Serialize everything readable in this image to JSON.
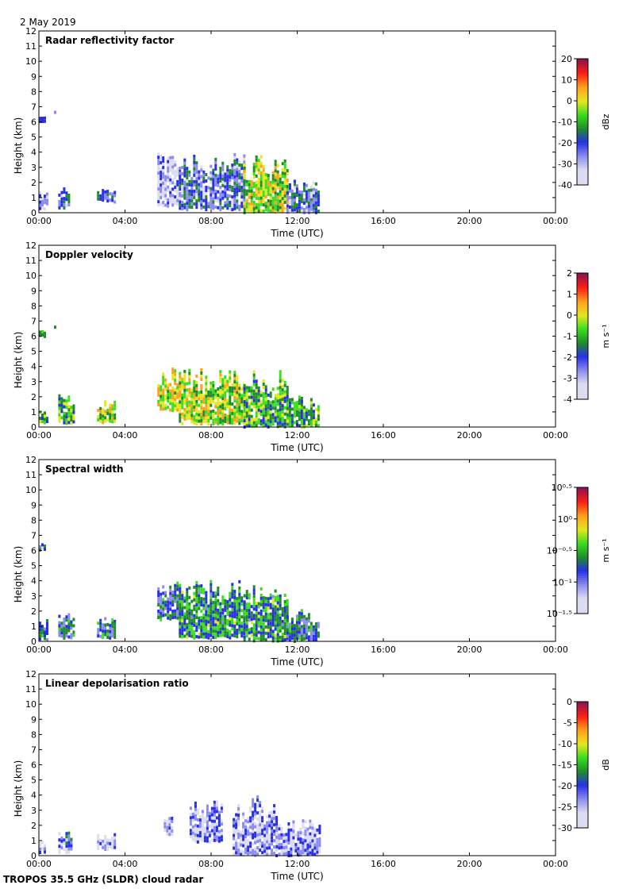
{
  "header": {
    "date": "2 May 2019"
  },
  "footer": {
    "instrument": "TROPOS 35.5 GHz (SLDR) cloud radar"
  },
  "colors": {
    "colormap": [
      "#ffffff",
      "#dcdcf0",
      "#8c8cf0",
      "#2830e6",
      "#1e8c28",
      "#3cdc1e",
      "#e6e61e",
      "#ffa01e",
      "#ff1e14",
      "#8c1450"
    ]
  },
  "chart_data": [
    {
      "type": "heatmap",
      "title": "Radar reflectivity factor",
      "xlabel": "Time (UTC)",
      "ylabel": "Height (km)",
      "xticks": [
        "00:00",
        "04:00",
        "08:00",
        "12:00",
        "16:00",
        "20:00",
        "00:00"
      ],
      "xlim": [
        0,
        24
      ],
      "ylim": [
        0,
        12
      ],
      "yticks": [
        0,
        1,
        2,
        3,
        4,
        5,
        6,
        7,
        8,
        9,
        10,
        11,
        12
      ],
      "colorbar": {
        "label": "dBz",
        "ticks": [
          "20",
          "10",
          "0",
          "-10",
          "-20",
          "-30",
          "-40"
        ],
        "range": [
          -40,
          20
        ]
      },
      "regions": [
        {
          "t0": 0.0,
          "t1": 0.3,
          "h0": 6.0,
          "h1": 6.4,
          "level": 0.25
        },
        {
          "t0": 0.7,
          "t1": 0.8,
          "h0": 6.6,
          "h1": 6.8,
          "level": 0.1
        },
        {
          "t0": 0.0,
          "t1": 0.4,
          "h0": 0.3,
          "h1": 1.5,
          "level": 0.2
        },
        {
          "t0": 0.9,
          "t1": 1.4,
          "h0": 0.4,
          "h1": 1.7,
          "level": 0.3
        },
        {
          "t0": 2.7,
          "t1": 3.5,
          "h0": 0.8,
          "h1": 1.7,
          "level": 0.3
        },
        {
          "t0": 5.5,
          "t1": 6.5,
          "h0": 0.5,
          "h1": 4.0,
          "level": 0.15
        },
        {
          "t0": 6.5,
          "t1": 9.5,
          "h0": 0.3,
          "h1": 4.0,
          "level": 0.3
        },
        {
          "t0": 9.5,
          "t1": 11.5,
          "h0": 0.1,
          "h1": 3.8,
          "level": 0.6
        },
        {
          "t0": 11.5,
          "t1": 13.0,
          "h0": 0.1,
          "h1": 2.2,
          "level": 0.3
        }
      ]
    },
    {
      "type": "heatmap",
      "title": "Doppler velocity",
      "xlabel": "Time (UTC)",
      "ylabel": "Height (km)",
      "xticks": [
        "00:00",
        "04:00",
        "08:00",
        "12:00",
        "16:00",
        "20:00",
        "00:00"
      ],
      "xlim": [
        0,
        24
      ],
      "ylim": [
        0,
        12
      ],
      "yticks": [
        0,
        1,
        2,
        3,
        4,
        5,
        6,
        7,
        8,
        9,
        10,
        11,
        12
      ],
      "colorbar": {
        "label": "m s⁻¹",
        "ticks": [
          "2",
          "1",
          "0",
          "-1",
          "-2",
          "-3",
          "-4"
        ],
        "range": [
          -4,
          2
        ]
      },
      "regions": [
        {
          "t0": 0.0,
          "t1": 0.3,
          "h0": 6.0,
          "h1": 6.5,
          "level": 0.55
        },
        {
          "t0": 0.7,
          "t1": 0.8,
          "h0": 6.5,
          "h1": 6.8,
          "level": 0.6
        },
        {
          "t0": 0.0,
          "t1": 0.4,
          "h0": 0.3,
          "h1": 1.3,
          "level": 0.5
        },
        {
          "t0": 0.9,
          "t1": 1.6,
          "h0": 0.3,
          "h1": 2.3,
          "level": 0.5
        },
        {
          "t0": 2.7,
          "t1": 3.5,
          "h0": 0.4,
          "h1": 1.8,
          "level": 0.6
        },
        {
          "t0": 5.5,
          "t1": 6.5,
          "h0": 1.2,
          "h1": 4.0,
          "level": 0.65
        },
        {
          "t0": 6.5,
          "t1": 9.5,
          "h0": 0.3,
          "h1": 4.0,
          "level": 0.6
        },
        {
          "t0": 9.5,
          "t1": 11.5,
          "h0": 0.1,
          "h1": 3.8,
          "level": 0.5
        },
        {
          "t0": 11.5,
          "t1": 13.0,
          "h0": 0.1,
          "h1": 2.2,
          "level": 0.5
        }
      ]
    },
    {
      "type": "heatmap",
      "title": "Spectral width",
      "xlabel": "Time (UTC)",
      "ylabel": "Height (km)",
      "xticks": [
        "00:00",
        "04:00",
        "08:00",
        "12:00",
        "16:00",
        "20:00",
        "00:00"
      ],
      "xlim": [
        0,
        24
      ],
      "ylim": [
        0,
        12
      ],
      "yticks": [
        0,
        1,
        2,
        3,
        4,
        5,
        6,
        7,
        8,
        9,
        10,
        11,
        12
      ],
      "colorbar": {
        "label": "m s⁻¹",
        "ticks": [
          "10⁰·⁵",
          "10⁰",
          "10⁻⁰·⁵",
          "10⁻¹",
          "10⁻¹·⁵"
        ],
        "range": [
          -1.5,
          0.5
        ]
      },
      "regions": [
        {
          "t0": 0.0,
          "t1": 0.3,
          "h0": 6.1,
          "h1": 6.5,
          "level": 0.3
        },
        {
          "t0": 0.7,
          "t1": 0.8,
          "h0": 6.6,
          "h1": 6.8,
          "level": 0.3
        },
        {
          "t0": 0.0,
          "t1": 0.4,
          "h0": 0.2,
          "h1": 1.5,
          "level": 0.35
        },
        {
          "t0": 0.9,
          "t1": 1.6,
          "h0": 0.3,
          "h1": 2.0,
          "level": 0.35
        },
        {
          "t0": 2.7,
          "t1": 3.5,
          "h0": 0.3,
          "h1": 1.7,
          "level": 0.35
        },
        {
          "t0": 5.5,
          "t1": 6.5,
          "h0": 1.5,
          "h1": 4.0,
          "level": 0.35
        },
        {
          "t0": 6.5,
          "t1": 9.5,
          "h0": 0.3,
          "h1": 4.1,
          "level": 0.45
        },
        {
          "t0": 9.5,
          "t1": 11.5,
          "h0": 0.1,
          "h1": 3.8,
          "level": 0.45
        },
        {
          "t0": 11.5,
          "t1": 13.0,
          "h0": 0.1,
          "h1": 2.2,
          "level": 0.35
        }
      ]
    },
    {
      "type": "heatmap",
      "title": "Linear depolarisation ratio",
      "xlabel": "Time (UTC)",
      "ylabel": "Height (km)",
      "xticks": [
        "00:00",
        "04:00",
        "08:00",
        "12:00",
        "16:00",
        "20:00",
        "00:00"
      ],
      "xlim": [
        0,
        24
      ],
      "ylim": [
        0,
        12
      ],
      "yticks": [
        0,
        1,
        2,
        3,
        4,
        5,
        6,
        7,
        8,
        9,
        10,
        11,
        12
      ],
      "colorbar": {
        "label": "dB",
        "ticks": [
          "0",
          "-5",
          "-10",
          "-15",
          "-20",
          "-25",
          "-30"
        ],
        "range": [
          -30,
          0
        ]
      },
      "regions": [
        {
          "t0": 0.0,
          "t1": 0.3,
          "h0": 0.3,
          "h1": 1.0,
          "level": 0.2
        },
        {
          "t0": 0.9,
          "t1": 1.5,
          "h0": 0.3,
          "h1": 1.6,
          "level": 0.25
        },
        {
          "t0": 2.7,
          "t1": 3.5,
          "h0": 0.5,
          "h1": 1.5,
          "level": 0.15
        },
        {
          "t0": 5.8,
          "t1": 6.2,
          "h0": 1.5,
          "h1": 2.6,
          "level": 0.15
        },
        {
          "t0": 7.0,
          "t1": 8.5,
          "h0": 1.0,
          "h1": 3.8,
          "level": 0.2
        },
        {
          "t0": 9.0,
          "t1": 11.0,
          "h0": 0.1,
          "h1": 4.0,
          "level": 0.2
        },
        {
          "t0": 11.0,
          "t1": 13.0,
          "h0": 0.1,
          "h1": 2.5,
          "level": 0.2
        }
      ]
    }
  ]
}
